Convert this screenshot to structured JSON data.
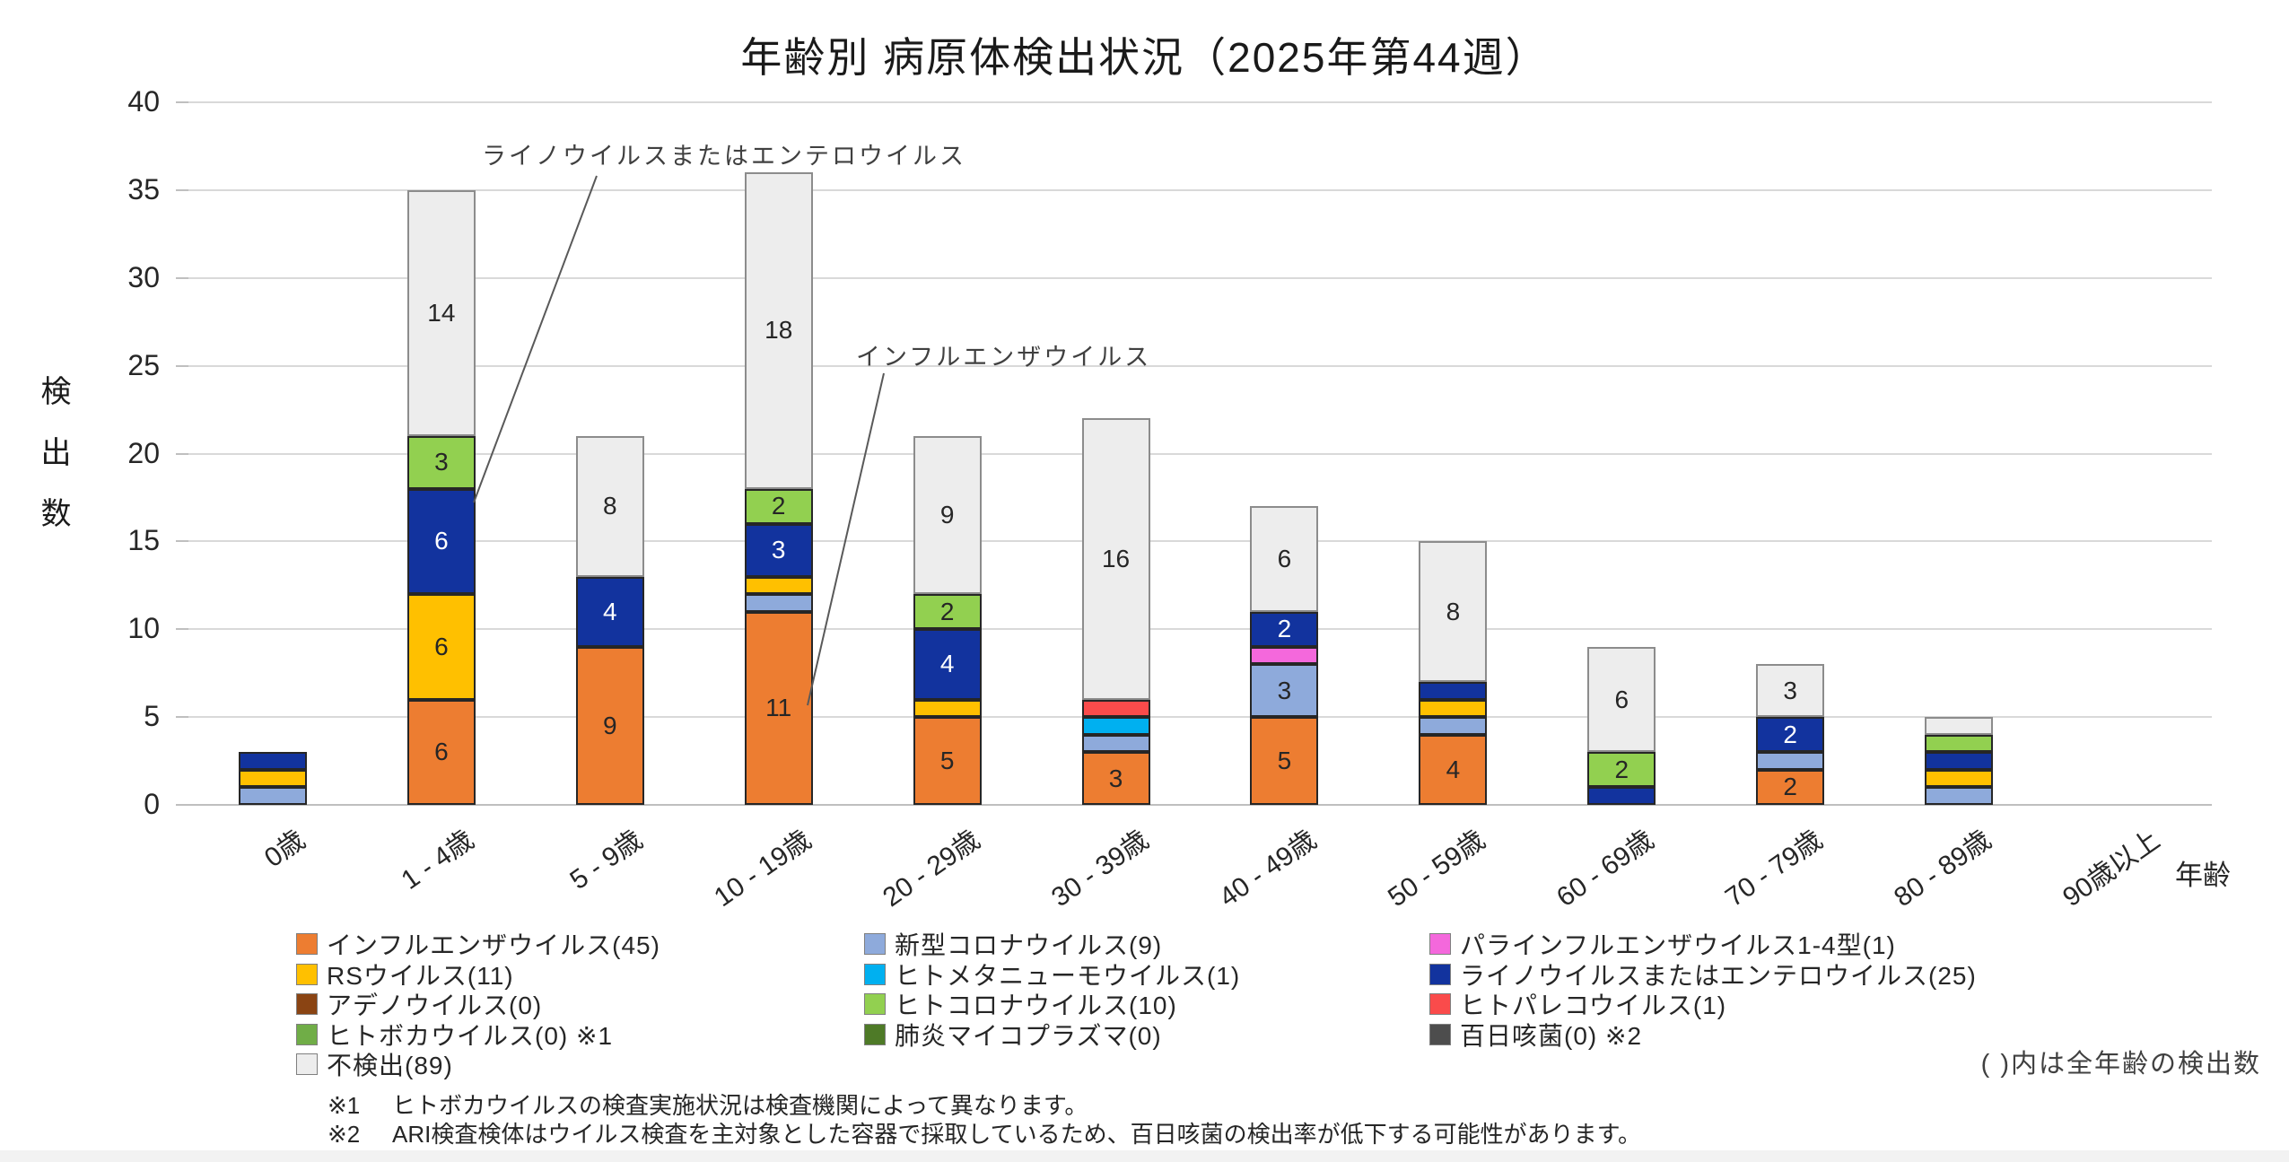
{
  "title": "年齢別 病原体検出状況（2025年第44週）",
  "y_axis": {
    "label": "検出数",
    "ticks": [
      0,
      5,
      10,
      15,
      20,
      25,
      30,
      35,
      40
    ],
    "max": 40
  },
  "x_axis": {
    "label": "年齢"
  },
  "annotations": [
    {
      "text": "ライノウイルスまたはエンテロウイルス"
    },
    {
      "text": "インフルエンザウイルス"
    }
  ],
  "legend": {
    "note": "( )内は全年齢の検出数",
    "columns": [
      [
        {
          "label": "インフルエンザウイルス(45)",
          "color": "#ED7D31"
        },
        {
          "label": "RSウイルス(11)",
          "color": "#FFC000"
        },
        {
          "label": "アデノウイルス(0)",
          "color": "#8A4413"
        },
        {
          "label": "ヒトボカウイルス(0) ※1",
          "color": "#70AD47"
        },
        {
          "label": "不検出(89)",
          "color": "#EDEDED"
        }
      ],
      [
        {
          "label": "新型コロナウイルス(9)",
          "color": "#8EAADB"
        },
        {
          "label": "ヒトメタニューモウイルス(1)",
          "color": "#00B0F0"
        },
        {
          "label": "ヒトコロナウイルス(10)",
          "color": "#92D050"
        },
        {
          "label": "肺炎マイコプラズマ(0)",
          "color": "#4E7A27"
        }
      ],
      [
        {
          "label": "パラインフルエンザウイルス1-4型(1)",
          "color": "#F468DC"
        },
        {
          "label": "ライノウイルスまたはエンテロウイルス(25)",
          "color": "#12339E"
        },
        {
          "label": "ヒトパレコウイルス(1)",
          "color": "#FA4B4B"
        },
        {
          "label": "百日咳菌(0) ※2",
          "color": "#4D4D4D"
        }
      ]
    ]
  },
  "footnotes": [
    {
      "mark": "※1",
      "text": "ヒトボカウイルスの検査実施状況は検査機関によって異なります。"
    },
    {
      "mark": "※2",
      "text": "ARI検査検体はウイルス検査を主対象とした容器で採取しているため、百日咳菌の検出率が低下する可能性があります。"
    }
  ],
  "chart_data": {
    "type": "bar",
    "stacked": true,
    "title": "年齢別 病原体検出状況（2025年第44週）",
    "xlabel": "年齢",
    "ylabel": "検出数",
    "ylim": [
      0,
      40
    ],
    "grid": true,
    "categories": [
      "0歳",
      "1 - 4歳",
      "5 - 9歳",
      "10 - 19歳",
      "20 - 29歳",
      "30 - 39歳",
      "40 - 49歳",
      "50 - 59歳",
      "60 - 69歳",
      "70 - 79歳",
      "80 - 89歳",
      "90歳以上"
    ],
    "series": [
      {
        "name": "インフルエンザウイルス",
        "total": 45,
        "color": "#ED7D31",
        "values": [
          0,
          6,
          9,
          11,
          5,
          3,
          5,
          4,
          0,
          2,
          0,
          0
        ]
      },
      {
        "name": "新型コロナウイルス",
        "total": 9,
        "color": "#8EAADB",
        "values": [
          1,
          0,
          0,
          1,
          0,
          1,
          3,
          1,
          0,
          1,
          1,
          0
        ]
      },
      {
        "name": "パラインフルエンザウイルス1-4型",
        "total": 1,
        "color": "#F468DC",
        "values": [
          0,
          0,
          0,
          0,
          0,
          0,
          1,
          0,
          0,
          0,
          0,
          0
        ]
      },
      {
        "name": "RSウイルス",
        "total": 11,
        "color": "#FFC000",
        "values": [
          1,
          6,
          0,
          1,
          1,
          0,
          0,
          1,
          0,
          0,
          1,
          0
        ]
      },
      {
        "name": "ヒトメタニューモウイルス",
        "total": 1,
        "color": "#00B0F0",
        "values": [
          0,
          0,
          0,
          0,
          0,
          1,
          0,
          0,
          0,
          0,
          0,
          0
        ]
      },
      {
        "name": "ライノウイルスまたはエンテロウイルス",
        "total": 25,
        "color": "#12339E",
        "label_color": "#FFFFFF",
        "values": [
          1,
          6,
          4,
          3,
          4,
          0,
          2,
          1,
          1,
          2,
          1,
          0
        ]
      },
      {
        "name": "アデノウイルス",
        "total": 0,
        "color": "#8A4413",
        "values": [
          0,
          0,
          0,
          0,
          0,
          0,
          0,
          0,
          0,
          0,
          0,
          0
        ]
      },
      {
        "name": "ヒトコロナウイルス",
        "total": 10,
        "color": "#92D050",
        "values": [
          0,
          3,
          0,
          2,
          2,
          0,
          0,
          0,
          2,
          0,
          1,
          0
        ]
      },
      {
        "name": "ヒトパレコウイルス",
        "total": 1,
        "color": "#FA4B4B",
        "values": [
          0,
          0,
          0,
          0,
          0,
          1,
          0,
          0,
          0,
          0,
          0,
          0
        ]
      },
      {
        "name": "ヒトボカウイルス",
        "total": 0,
        "color": "#70AD47",
        "values": [
          0,
          0,
          0,
          0,
          0,
          0,
          0,
          0,
          0,
          0,
          0,
          0
        ]
      },
      {
        "name": "肺炎マイコプラズマ",
        "total": 0,
        "color": "#4E7A27",
        "values": [
          0,
          0,
          0,
          0,
          0,
          0,
          0,
          0,
          0,
          0,
          0,
          0
        ]
      },
      {
        "name": "百日咳菌",
        "total": 0,
        "color": "#4D4D4D",
        "values": [
          0,
          0,
          0,
          0,
          0,
          0,
          0,
          0,
          0,
          0,
          0,
          0
        ]
      },
      {
        "name": "不検出",
        "total": 89,
        "color": "#EDEDED",
        "border": "#8C8C8C",
        "values": [
          0,
          14,
          8,
          18,
          9,
          16,
          6,
          8,
          6,
          3,
          1,
          0
        ]
      }
    ]
  }
}
